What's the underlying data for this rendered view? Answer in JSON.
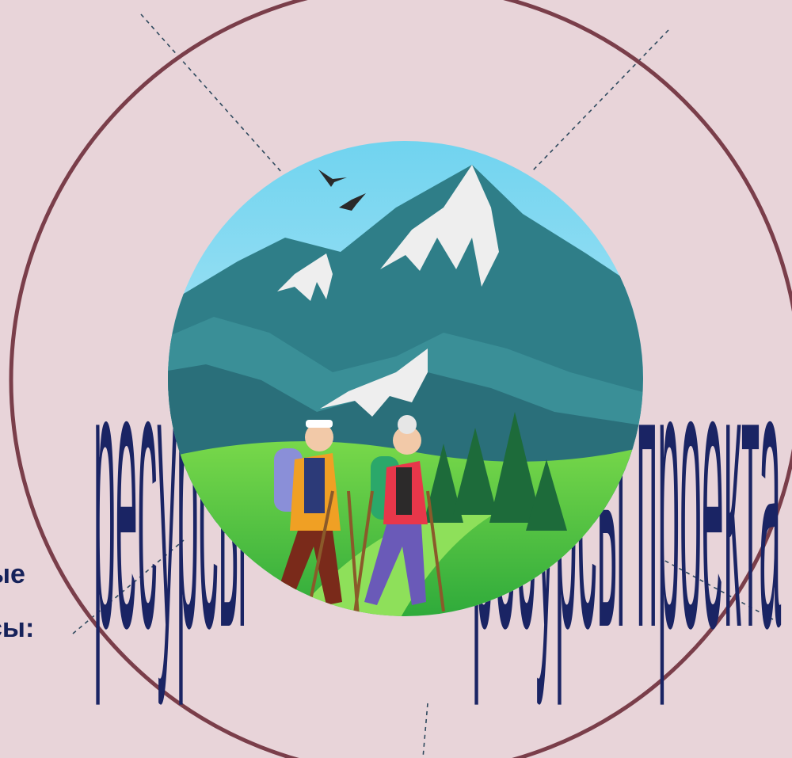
{
  "slide": {
    "left_caption_line1": "ые",
    "left_caption_line2": "сы:",
    "wordart_left": "ресурсы",
    "wordart_right": "ресурсы проекта"
  },
  "colors": {
    "background": "#e8d4d9",
    "circle_outline": "#7a3e4a",
    "text": "#1a2464"
  },
  "illustration": {
    "subject": "elderly-couple-hiking-in-mountains",
    "icons": [
      "bird-icon",
      "bird-icon",
      "mountain-icon",
      "fir-tree-icon",
      "hiker-icon"
    ]
  }
}
